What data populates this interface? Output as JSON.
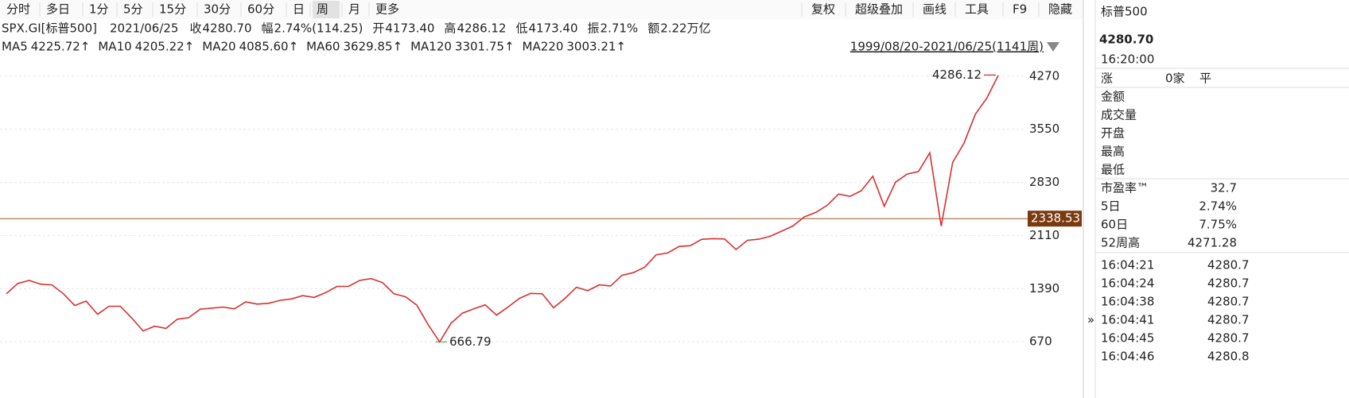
{
  "toolbar": {
    "periods": [
      "分时",
      "多日",
      "1分",
      "5分",
      "15分",
      "30分",
      "60分",
      "日",
      "周",
      "月",
      "更多"
    ],
    "active": 8,
    "tools": [
      "复权",
      "超级叠加",
      "画线",
      "工具",
      "F9",
      "隐藏"
    ]
  },
  "info": {
    "symbol": "SPX.GI[标普500]",
    "date": "2021/06/25",
    "fields": [
      {
        "label": "收",
        "value": "4280.70",
        "color": "#d0021b"
      },
      {
        "label": "幅",
        "value": "2.74%(114.25)",
        "color": "#d0021b"
      },
      {
        "label": "开",
        "value": "4173.40",
        "color": "#d0021b"
      },
      {
        "label": "高",
        "value": "4286.12",
        "color": "#d0021b"
      },
      {
        "label": "低",
        "value": "4173.40",
        "color": "#d0021b"
      },
      {
        "label": "振",
        "value": "2.71%",
        "color": "#222"
      },
      {
        "label": "额",
        "value": "2.22万亿",
        "color": "#222"
      }
    ]
  },
  "ma_legend": [
    {
      "name": "MA5",
      "value": "4225.72↑",
      "color": "#d0021b"
    },
    {
      "name": "MA10",
      "value": "4205.22↑",
      "color": "#3a7fc4"
    },
    {
      "name": "MA20",
      "value": "4085.60↑",
      "color": "#1f3fd6"
    },
    {
      "name": "MA60",
      "value": "3629.85↑",
      "color": "#1fb8d6"
    },
    {
      "name": "MA120",
      "value": "3301.75↑",
      "color": "#27a040"
    },
    {
      "name": "MA220",
      "value": "3003.21↑",
      "color": "#d21fd6"
    }
  ],
  "range": "1999/08/20-2021/06/25(1141周)",
  "chart_data": {
    "type": "line",
    "color": "#d83030",
    "ylim": [
      294,
      4549
    ],
    "yticks": [
      670,
      1390,
      2110,
      2830,
      3550,
      4270
    ],
    "grid": true,
    "values": [
      1320,
      1460,
      1500,
      1450,
      1440,
      1320,
      1160,
      1220,
      1040,
      1150,
      1150,
      990,
      815,
      880,
      850,
      975,
      995,
      1110,
      1125,
      1140,
      1115,
      1210,
      1180,
      1190,
      1230,
      1250,
      1295,
      1270,
      1335,
      1420,
      1420,
      1500,
      1525,
      1470,
      1320,
      1280,
      1165,
      900,
      667,
      920,
      1057,
      1115,
      1170,
      1030,
      1140,
      1257,
      1325,
      1320,
      1130,
      1257,
      1408,
      1362,
      1440,
      1426,
      1569,
      1606,
      1681,
      1848,
      1872,
      1960,
      1972,
      2058,
      2067,
      2063,
      1920,
      2044,
      2060,
      2099,
      2168,
      2239,
      2363,
      2423,
      2519,
      2673,
      2640,
      2718,
      2914,
      2507,
      2834,
      2942,
      2977,
      3231,
      2237,
      3100,
      3363,
      3756,
      3973,
      4280.7
    ],
    "high": 4286.12,
    "low": 666.79,
    "hline": 2338.53
  },
  "panel": {
    "title": "标普500",
    "price": "4280.70",
    "time": "16:20:00",
    "rise": [
      "涨",
      "0家",
      "平"
    ],
    "stats": [
      [
        "金额",
        ""
      ],
      [
        "成交量",
        ""
      ],
      [
        "开盘",
        ""
      ],
      [
        "最高",
        ""
      ],
      [
        "最低",
        ""
      ],
      [
        "市盈率™",
        "32.7"
      ],
      [
        "5日",
        "2.74%"
      ],
      [
        "60日",
        "7.75%"
      ],
      [
        "52周高",
        "4271.28"
      ]
    ],
    "trades": [
      [
        "16:04:21",
        "4280.7"
      ],
      [
        "16:04:24",
        "4280.7"
      ],
      [
        "16:04:38",
        "4280.7"
      ],
      [
        "16:04:41",
        "4280.7"
      ],
      [
        "16:04:45",
        "4280.7"
      ],
      [
        "16:04:46",
        "4280.8"
      ]
    ]
  }
}
